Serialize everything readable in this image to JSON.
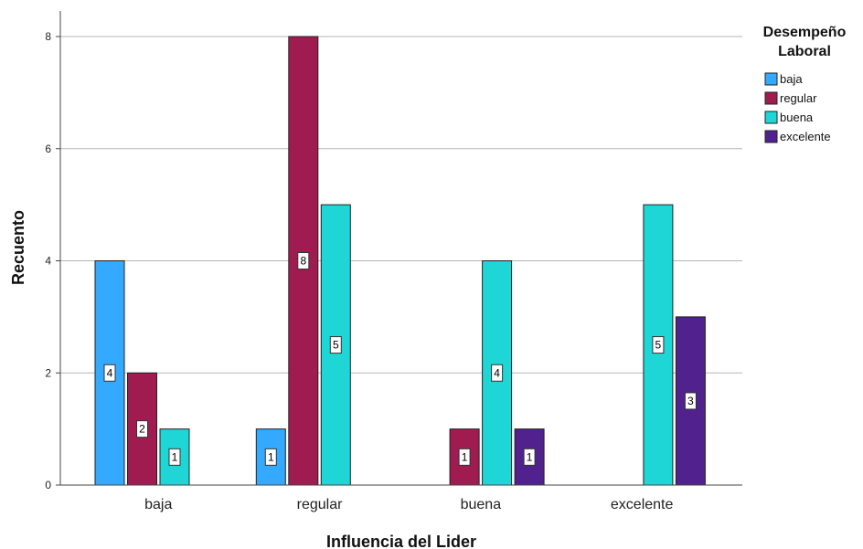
{
  "chart_data": {
    "type": "bar",
    "xlabel": "Influencia del Lider",
    "ylabel": "Recuento",
    "ylim": [
      0,
      8.5
    ],
    "yticks": [
      0,
      2,
      4,
      6,
      8
    ],
    "grid": true,
    "legend_position": "top-right",
    "legend_title": "Desempeño Laboral",
    "categories": [
      "baja",
      "regular",
      "buena",
      "excelente"
    ],
    "series": [
      {
        "name": "baja",
        "color": "#33aaff",
        "values": [
          4,
          1,
          0,
          0
        ]
      },
      {
        "name": "regular",
        "color": "#a01c50",
        "values": [
          2,
          8,
          1,
          0
        ]
      },
      {
        "name": "buena",
        "color": "#1ed6d6",
        "values": [
          1,
          5,
          4,
          5
        ]
      },
      {
        "name": "excelente",
        "color": "#51218e",
        "values": [
          0,
          0,
          1,
          3
        ]
      }
    ]
  }
}
